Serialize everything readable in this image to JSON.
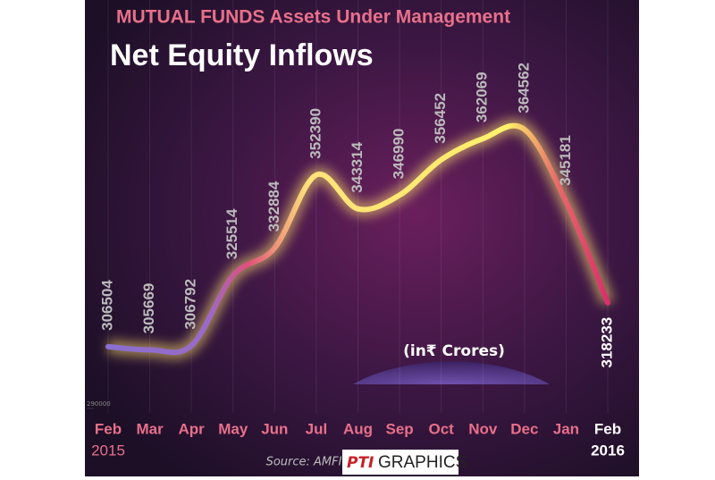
{
  "chart_data": {
    "type": "line",
    "title": "MUTUAL FUNDS Assets Under Management",
    "subtitle": "Net Equity Inflows",
    "categories": [
      "Feb",
      "Mar",
      "Apr",
      "May",
      "Jun",
      "Jul",
      "Aug",
      "Sep",
      "Oct",
      "Nov",
      "Dec",
      "Jan",
      "Feb"
    ],
    "start_year": "2015",
    "end_year": "2016",
    "values": [
      306504,
      305669,
      306792,
      325514,
      332884,
      352390,
      343314,
      346990,
      356452,
      362069,
      364562,
      345181,
      318233
    ],
    "ylim": [
      290000,
      375000
    ],
    "yticks": [
      290000
    ],
    "unit_note": "(in₹ Crores)",
    "source": "Source: AMFI",
    "credit_logo": "PTI",
    "credit_text": "GRAPHICS"
  }
}
